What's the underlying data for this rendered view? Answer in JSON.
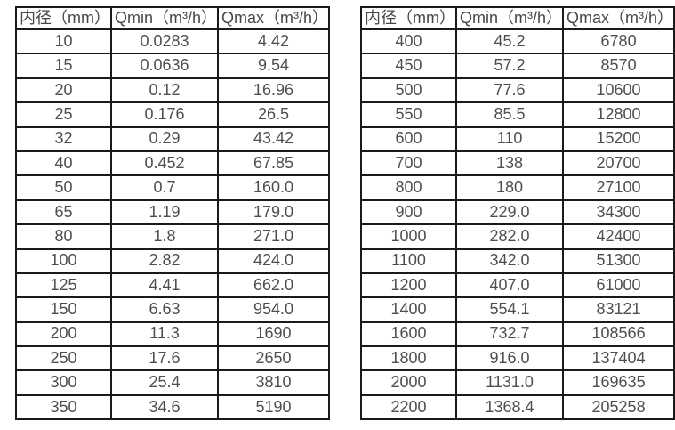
{
  "style": {
    "background": "#ffffff",
    "border_color": "#1a1a1a",
    "text_color": "#4e4e4e"
  },
  "tables": [
    {
      "name": "flow-table-small-diameters",
      "headers": [
        "内径（mm）",
        "Qmin（m³/h）",
        "Qmax（m³/h）"
      ],
      "rows": [
        [
          "10",
          "0.0283",
          "4.42"
        ],
        [
          "15",
          "0.0636",
          "9.54"
        ],
        [
          "20",
          "0.12",
          "16.96"
        ],
        [
          "25",
          "0.176",
          "26.5"
        ],
        [
          "32",
          "0.29",
          "43.42"
        ],
        [
          "40",
          "0.452",
          "67.85"
        ],
        [
          "50",
          "0.7",
          "160.0"
        ],
        [
          "65",
          "1.19",
          "179.0"
        ],
        [
          "80",
          "1.8",
          "271.0"
        ],
        [
          "100",
          "2.82",
          "424.0"
        ],
        [
          "125",
          "4.41",
          "662.0"
        ],
        [
          "150",
          "6.63",
          "954.0"
        ],
        [
          "200",
          "11.3",
          "1690"
        ],
        [
          "250",
          "17.6",
          "2650"
        ],
        [
          "300",
          "25.4",
          "3810"
        ],
        [
          "350",
          "34.6",
          "5190"
        ]
      ]
    },
    {
      "name": "flow-table-large-diameters",
      "headers": [
        "内径（mm）",
        "Qmin（m³/h）",
        "Qmax（m³/h）"
      ],
      "rows": [
        [
          "400",
          "45.2",
          "6780"
        ],
        [
          "450",
          "57.2",
          "8570"
        ],
        [
          "500",
          "77.6",
          "10600"
        ],
        [
          "550",
          "85.5",
          "12800"
        ],
        [
          "600",
          "110",
          "15200"
        ],
        [
          "700",
          "138",
          "20700"
        ],
        [
          "800",
          "180",
          "27100"
        ],
        [
          "900",
          "229.0",
          "34300"
        ],
        [
          "1000",
          "282.0",
          "42400"
        ],
        [
          "1100",
          "342.0",
          "51300"
        ],
        [
          "1200",
          "407.0",
          "61000"
        ],
        [
          "1400",
          "554.1",
          "83121"
        ],
        [
          "1600",
          "732.7",
          "108566"
        ],
        [
          "1800",
          "916.0",
          "137404"
        ],
        [
          "2000",
          "1131.0",
          "169635"
        ],
        [
          "2200",
          "1368.4",
          "205258"
        ]
      ]
    }
  ]
}
